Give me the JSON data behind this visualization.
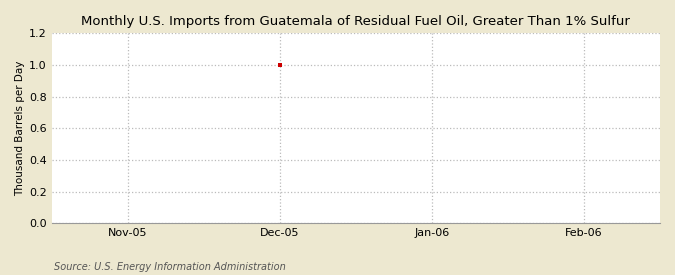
{
  "title": "Monthly U.S. Imports from Guatemala of Residual Fuel Oil, Greater Than 1% Sulfur",
  "ylabel": "Thousand Barrels per Day",
  "source": "Source: U.S. Energy Information Administration",
  "fig_background_color": "#EDE8D0",
  "plot_background_color": "#FFFFFF",
  "ylim": [
    0.0,
    1.2
  ],
  "yticks": [
    0.0,
    0.2,
    0.4,
    0.6,
    0.8,
    1.0,
    1.2
  ],
  "xtick_labels": [
    "Nov-05",
    "Dec-05",
    "Jan-06",
    "Feb-06"
  ],
  "xtick_positions": [
    1,
    2,
    3,
    4
  ],
  "xlim": [
    0.5,
    4.5
  ],
  "data_x": [
    2
  ],
  "data_y": [
    1.0
  ],
  "data_color": "#CC0000",
  "marker": "s",
  "marker_size": 3,
  "grid_color": "#BBBBBB",
  "grid_linestyle": ":",
  "grid_linewidth": 0.9,
  "title_fontsize": 9.5,
  "title_fontweight": "normal",
  "axis_label_fontsize": 7.5,
  "tick_fontsize": 8,
  "source_fontsize": 7
}
